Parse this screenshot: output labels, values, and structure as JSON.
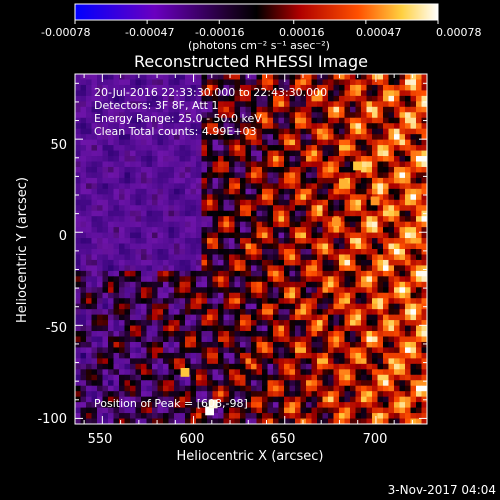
{
  "figure": {
    "title": "Reconstructed RHESSI Image",
    "date_stamp": "3-Nov-2017 04:04",
    "annotations": [
      "20-Jul-2016 22:33:30.000 to 22:43:30.000",
      "Detectors: 3F 8F, Att 1",
      "Energy Range: 25.0 - 50.0 keV",
      "Clean    Total counts: 4.99E+03"
    ],
    "peak_text": "Position of Peak = [608,-98]"
  },
  "colorbar": {
    "ticks": [
      "-0.00078",
      "-0.00047",
      "-0.00016",
      "0.00016",
      "0.00047",
      "0.00078"
    ],
    "unit": "(photons cm⁻² s⁻¹ asec⁻²)",
    "range": [
      -0.00078,
      0.00078
    ],
    "colors": [
      "#0000ff",
      "#7b00b0",
      "#000000",
      "#c00000",
      "#ff6000",
      "#ffffa0",
      "#ffffff"
    ]
  },
  "axes": {
    "xlabel": "Heliocentric X (arcsec)",
    "ylabel": "Heliocentric Y (arcsec)",
    "xticks": [
      "550",
      "600",
      "650",
      "700"
    ],
    "yticks": [
      "50",
      "0",
      "-50",
      "-100"
    ],
    "xlim": [
      535,
      728
    ],
    "ylim": [
      -103,
      85
    ]
  },
  "image": {
    "peak": [
      608,
      -98
    ],
    "pixel_grid": [
      64,
      64
    ]
  }
}
